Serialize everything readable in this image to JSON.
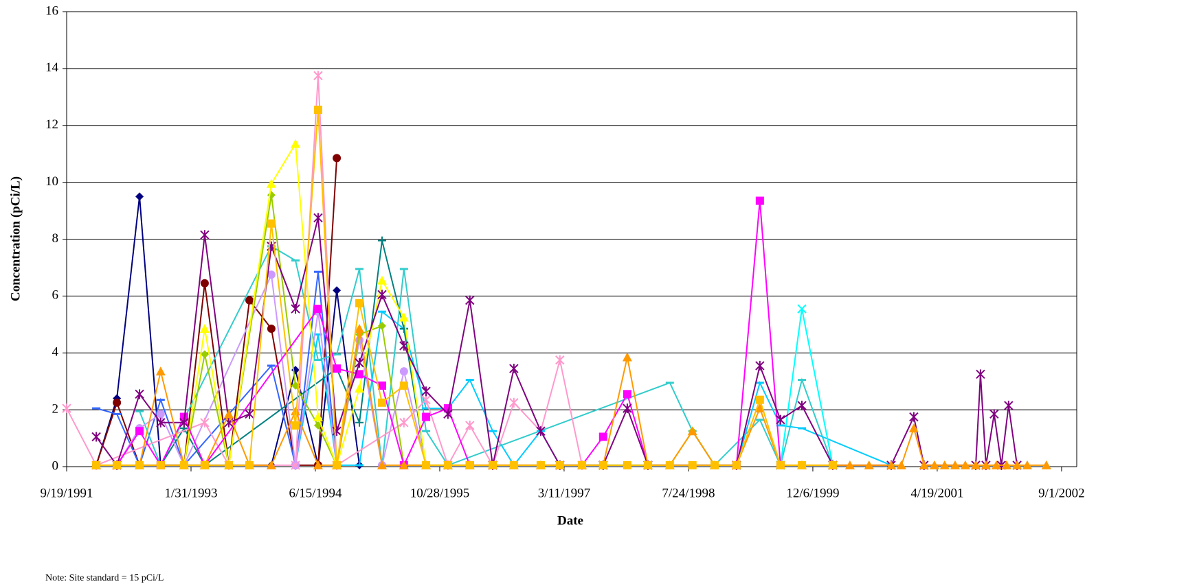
{
  "chart_data": {
    "type": "line",
    "ylabel": "Concentration (pCi/L)",
    "xlabel": "Date",
    "note": "Note:  Site standard = 15 pCi/L",
    "ylim": [
      0,
      16
    ],
    "yticks": [
      0,
      2,
      4,
      6,
      8,
      10,
      12,
      14,
      16
    ],
    "grid": true,
    "xlim": [
      "9/19/1991",
      "11/1/2002"
    ],
    "xticks": [
      "9/19/1991",
      "1/31/1993",
      "6/15/1994",
      "10/28/1995",
      "3/11/1997",
      "7/24/1998",
      "12/6/1999",
      "4/19/2001",
      "9/1/2002"
    ],
    "series": [
      {
        "color": "#000080",
        "marker": "diamond",
        "x": [
          "1/16/1992",
          "4/8/1992",
          "7/8/1992",
          "10/1/1992",
          "1/3/1993",
          "3/27/1993",
          "7/2/1993",
          "9/23/1993",
          "12/20/1993",
          "3/27/1994",
          "6/26/1994",
          "9/9/1994",
          "12/9/1994"
        ],
        "values": [
          0.05,
          2.4,
          9.5,
          0.05,
          0.05,
          0.05,
          0.05,
          0.05,
          0.05,
          3.4,
          0.05,
          6.2,
          0.05
        ]
      },
      {
        "color": "#800000",
        "marker": "circle",
        "x": [
          "1/16/1992",
          "4/8/1992",
          "7/8/1992",
          "10/1/1992",
          "1/3/1993",
          "3/27/1993",
          "7/2/1993",
          "9/23/1993",
          "12/20/1993",
          "3/27/1994",
          "6/26/1994",
          "9/9/1994"
        ],
        "values": [
          0.05,
          2.25,
          0.05,
          0.05,
          0.05,
          6.45,
          0.05,
          5.85,
          4.85,
          0.05,
          0.05,
          10.85
        ]
      },
      {
        "color": "#3366ff",
        "marker": "dash",
        "x": [
          "1/16/1992",
          "4/8/1992",
          "7/8/1992",
          "10/1/1992",
          "1/3/1993",
          "12/20/1993",
          "3/27/1994",
          "6/26/1994",
          "9/9/1994"
        ],
        "values": [
          2.05,
          1.85,
          0.05,
          2.35,
          0.05,
          3.55,
          0.05,
          6.85,
          0.05
        ]
      },
      {
        "color": "#33cccc",
        "marker": "dash",
        "x": [
          "7/8/1992",
          "10/1/1992",
          "12/20/1993",
          "3/27/1994",
          "6/26/1994",
          "9/9/1994",
          "12/9/1994",
          "3/10/1995",
          "6/6/1995",
          "9/3/1995",
          "11/30/1995",
          "5/10/1998",
          "8/9/1998",
          "11/6/1998",
          "5/7/1999",
          "7/29/1999",
          "10/23/1999",
          "2/24/2000"
        ],
        "values": [
          1.95,
          0.05,
          7.75,
          7.25,
          3.75,
          3.95,
          6.95,
          0.05,
          6.95,
          1.25,
          0.05,
          2.95,
          1.25,
          0.05,
          1.65,
          0.05,
          3.05,
          0.05
        ]
      },
      {
        "color": "#00ccff",
        "marker": "dash",
        "x": [
          "3/27/1994",
          "6/26/1994",
          "9/9/1994",
          "12/9/1994",
          "3/10/1995",
          "6/6/1995",
          "9/3/1995",
          "11/30/1995",
          "2/26/1996",
          "5/28/1996",
          "8/21/1996",
          "12/7/1996",
          "2/22/1997",
          "2/2/1999",
          "5/7/1999",
          "7/29/1999",
          "10/23/1999",
          "10/16/2000"
        ],
        "values": [
          0.05,
          4.65,
          0.05,
          0.05,
          5.45,
          4.85,
          2.05,
          2.05,
          3.05,
          1.25,
          0.05,
          1.25,
          0.05,
          0.05,
          2.95,
          1.45,
          1.35,
          0.05
        ]
      },
      {
        "color": "#00ffff",
        "marker": "x",
        "x": [
          "7/29/1999",
          "10/23/1999",
          "2/24/2000"
        ],
        "values": [
          0.05,
          5.55,
          0.05
        ]
      },
      {
        "color": "#008080",
        "marker": "plus",
        "x": [
          "10/1/1992",
          "1/3/1993",
          "3/27/1993",
          "9/9/1994",
          "12/9/1994",
          "3/10/1995",
          "6/6/1995",
          "9/3/1995"
        ],
        "values": [
          0.05,
          1.35,
          0.05,
          3.45,
          1.55,
          7.95,
          4.85,
          0.05
        ]
      },
      {
        "color": "#cc99ff",
        "marker": "circle",
        "x": [
          "4/8/1992",
          "7/8/1992",
          "10/1/1992",
          "1/3/1993",
          "12/20/1993",
          "3/27/1994",
          "6/26/1994",
          "9/9/1994",
          "12/9/1994",
          "3/10/1995",
          "6/6/1995",
          "9/3/1995"
        ],
        "values": [
          0.05,
          1.35,
          1.85,
          0.05,
          6.75,
          0.05,
          5.45,
          0.05,
          4.45,
          0.05,
          3.35,
          0.05
        ]
      },
      {
        "color": "#ff99cc",
        "marker": "star",
        "x": [
          "9/19/1991",
          "1/16/1992",
          "3/27/1993",
          "7/2/1993",
          "3/27/1994",
          "6/26/1994",
          "9/9/1994",
          "6/6/1995",
          "9/3/1995",
          "11/30/1995",
          "2/26/1996",
          "5/28/1996",
          "8/21/1996",
          "12/7/1996",
          "2/22/1997",
          "5/22/1997"
        ],
        "values": [
          2.05,
          0.05,
          1.55,
          0.05,
          0.05,
          13.75,
          0.05,
          1.55,
          2.35,
          0.05,
          1.45,
          0.05,
          2.25,
          1.25,
          3.75,
          0.05
        ]
      },
      {
        "color": "#99cc00",
        "marker": "diamond",
        "x": [
          "1/3/1993",
          "3/27/1993",
          "7/2/1993",
          "12/20/1993",
          "3/27/1994",
          "6/26/1994",
          "9/9/1994",
          "12/9/1994",
          "3/10/1995",
          "6/6/1995",
          "5/10/1998",
          "8/9/1998",
          "11/6/1998"
        ],
        "values": [
          0.05,
          3.95,
          0.05,
          9.55,
          2.85,
          1.45,
          0.05,
          4.65,
          4.95,
          0.05,
          0.05,
          1.25,
          0.05
        ]
      },
      {
        "color": "#ffff00",
        "marker": "triangle",
        "x": [
          "1/3/1993",
          "3/27/1993",
          "7/2/1993",
          "12/20/1993",
          "3/27/1994",
          "6/26/1994",
          "9/9/1994",
          "12/9/1994",
          "3/10/1995",
          "6/6/1995",
          "9/3/1995"
        ],
        "values": [
          0.05,
          4.85,
          0.05,
          9.95,
          11.35,
          1.75,
          0.05,
          2.75,
          6.55,
          5.25,
          0.05
        ]
      },
      {
        "color": "#ff00ff",
        "marker": "square",
        "x": [
          "4/8/1992",
          "7/8/1992",
          "10/1/1992",
          "1/3/1993",
          "3/27/1993",
          "6/26/1994",
          "9/9/1994",
          "12/9/1994",
          "3/10/1995",
          "6/6/1995",
          "9/3/1995",
          "11/30/1995",
          "2/26/1996",
          "5/22/1997",
          "8/15/1997",
          "11/20/1997",
          "2/11/1998",
          "2/2/1999",
          "5/7/1999",
          "7/29/1999"
        ],
        "values": [
          0.05,
          1.25,
          0.05,
          1.75,
          0.05,
          5.55,
          3.45,
          3.25,
          2.85,
          0.05,
          1.75,
          2.05,
          0.05,
          0.05,
          1.05,
          2.55,
          0.05,
          0.05,
          9.35,
          0.05
        ]
      },
      {
        "color": "#800080",
        "marker": "star",
        "x": [
          "1/16/1992",
          "4/8/1992",
          "7/8/1992",
          "10/1/1992",
          "1/3/1993",
          "3/27/1993",
          "7/2/1993",
          "9/23/1993",
          "12/20/1993",
          "3/27/1994",
          "6/26/1994",
          "9/9/1994",
          "12/9/1994",
          "3/10/1995",
          "6/6/1995",
          "9/3/1995",
          "11/30/1995",
          "2/26/1996",
          "5/28/1996",
          "8/21/1996",
          "12/7/1996",
          "2/22/1997",
          "8/15/1997",
          "11/20/1997",
          "2/11/1998",
          "2/2/1999",
          "5/7/1999",
          "7/29/1999",
          "10/23/1999",
          "2/24/2000",
          "10/16/2000",
          "1/15/2001",
          "2/25/2001",
          "9/21/2001",
          "10/10/2001",
          "11/1/2001",
          "12/4/2001",
          "1/2/2002",
          "1/31/2002",
          "3/6/2002"
        ],
        "values": [
          1.05,
          0.05,
          2.55,
          1.55,
          1.55,
          8.15,
          1.55,
          1.85,
          7.75,
          5.55,
          8.75,
          1.25,
          3.65,
          6.05,
          4.25,
          2.65,
          1.85,
          5.85,
          0.05,
          3.45,
          1.25,
          0.05,
          0.05,
          2.05,
          0.05,
          0.05,
          3.55,
          1.65,
          2.15,
          0.05,
          0.05,
          1.75,
          0.05,
          0.05,
          3.25,
          0.05,
          1.85,
          0.05,
          2.15,
          0.05
        ]
      },
      {
        "color": "#ff9900",
        "marker": "triangle",
        "x": [
          "1/16/1992",
          "4/8/1992",
          "7/8/1992",
          "10/1/1992",
          "1/3/1993",
          "3/27/1993",
          "7/2/1993",
          "9/23/1993",
          "12/20/1993",
          "3/27/1994",
          "6/26/1994",
          "9/9/1994",
          "12/9/1994",
          "3/10/1995",
          "6/6/1995",
          "9/3/1995",
          "11/30/1995",
          "2/26/1996",
          "5/28/1996",
          "8/21/1996",
          "12/7/1996",
          "2/22/1997",
          "5/22/1997",
          "8/15/1997",
          "11/20/1997",
          "2/11/1998",
          "5/10/1998",
          "8/9/1998",
          "11/6/1998",
          "2/2/1999",
          "5/7/1999",
          "7/29/1999",
          "10/23/1999",
          "2/24/2000",
          "5/3/2000",
          "7/19/2000",
          "10/16/2000",
          "11/26/2000",
          "1/15/2001",
          "2/25/2001",
          "4/8/2001",
          "5/19/2001",
          "6/30/2001",
          "8/10/2001",
          "9/21/2001",
          "11/1/2001",
          "12/13/2001",
          "1/23/2002",
          "3/6/2002",
          "4/16/2002",
          "7/2/2002"
        ],
        "values": [
          0.05,
          0.05,
          0.05,
          3.35,
          0.05,
          0.05,
          1.85,
          0.05,
          0.05,
          1.95,
          0.05,
          0.05,
          4.85,
          0.05,
          0.05,
          0.05,
          0.05,
          0.05,
          0.05,
          0.05,
          0.05,
          0.05,
          0.05,
          0.05,
          3.85,
          0.05,
          0.05,
          1.25,
          0.05,
          0.05,
          2.05,
          0.05,
          0.05,
          0.05,
          0.05,
          0.05,
          0.05,
          0.05,
          1.35,
          0.05,
          0.05,
          0.05,
          0.05,
          0.05,
          0.05,
          0.05,
          0.05,
          0.05,
          0.05,
          0.05,
          0.05
        ]
      },
      {
        "color": "#ffc000",
        "marker": "square",
        "x": [
          "1/16/1992",
          "4/8/1992",
          "7/8/1992",
          "10/1/1992",
          "1/3/1993",
          "3/27/1993",
          "7/2/1993",
          "9/23/1993",
          "12/20/1993",
          "3/27/1994",
          "6/26/1994",
          "9/9/1994",
          "12/9/1994",
          "3/10/1995",
          "6/6/1995",
          "9/3/1995",
          "11/30/1995",
          "2/26/1996",
          "5/28/1996",
          "8/21/1996",
          "12/7/1996",
          "2/22/1997",
          "5/22/1997",
          "8/15/1997",
          "11/20/1997",
          "2/11/1998",
          "5/10/1998",
          "8/9/1998",
          "11/6/1998",
          "2/2/1999",
          "5/7/1999",
          "7/29/1999",
          "10/23/1999",
          "2/24/2000"
        ],
        "values": [
          0.05,
          0.05,
          0.05,
          0.05,
          0.05,
          0.05,
          0.05,
          0.05,
          8.55,
          1.45,
          12.55,
          0.05,
          5.75,
          2.25,
          2.85,
          0.05,
          0.05,
          0.05,
          0.05,
          0.05,
          0.05,
          0.05,
          0.05,
          0.05,
          0.05,
          0.05,
          0.05,
          0.05,
          0.05,
          0.05,
          2.35,
          0.05,
          0.05,
          0.05
        ]
      }
    ]
  }
}
